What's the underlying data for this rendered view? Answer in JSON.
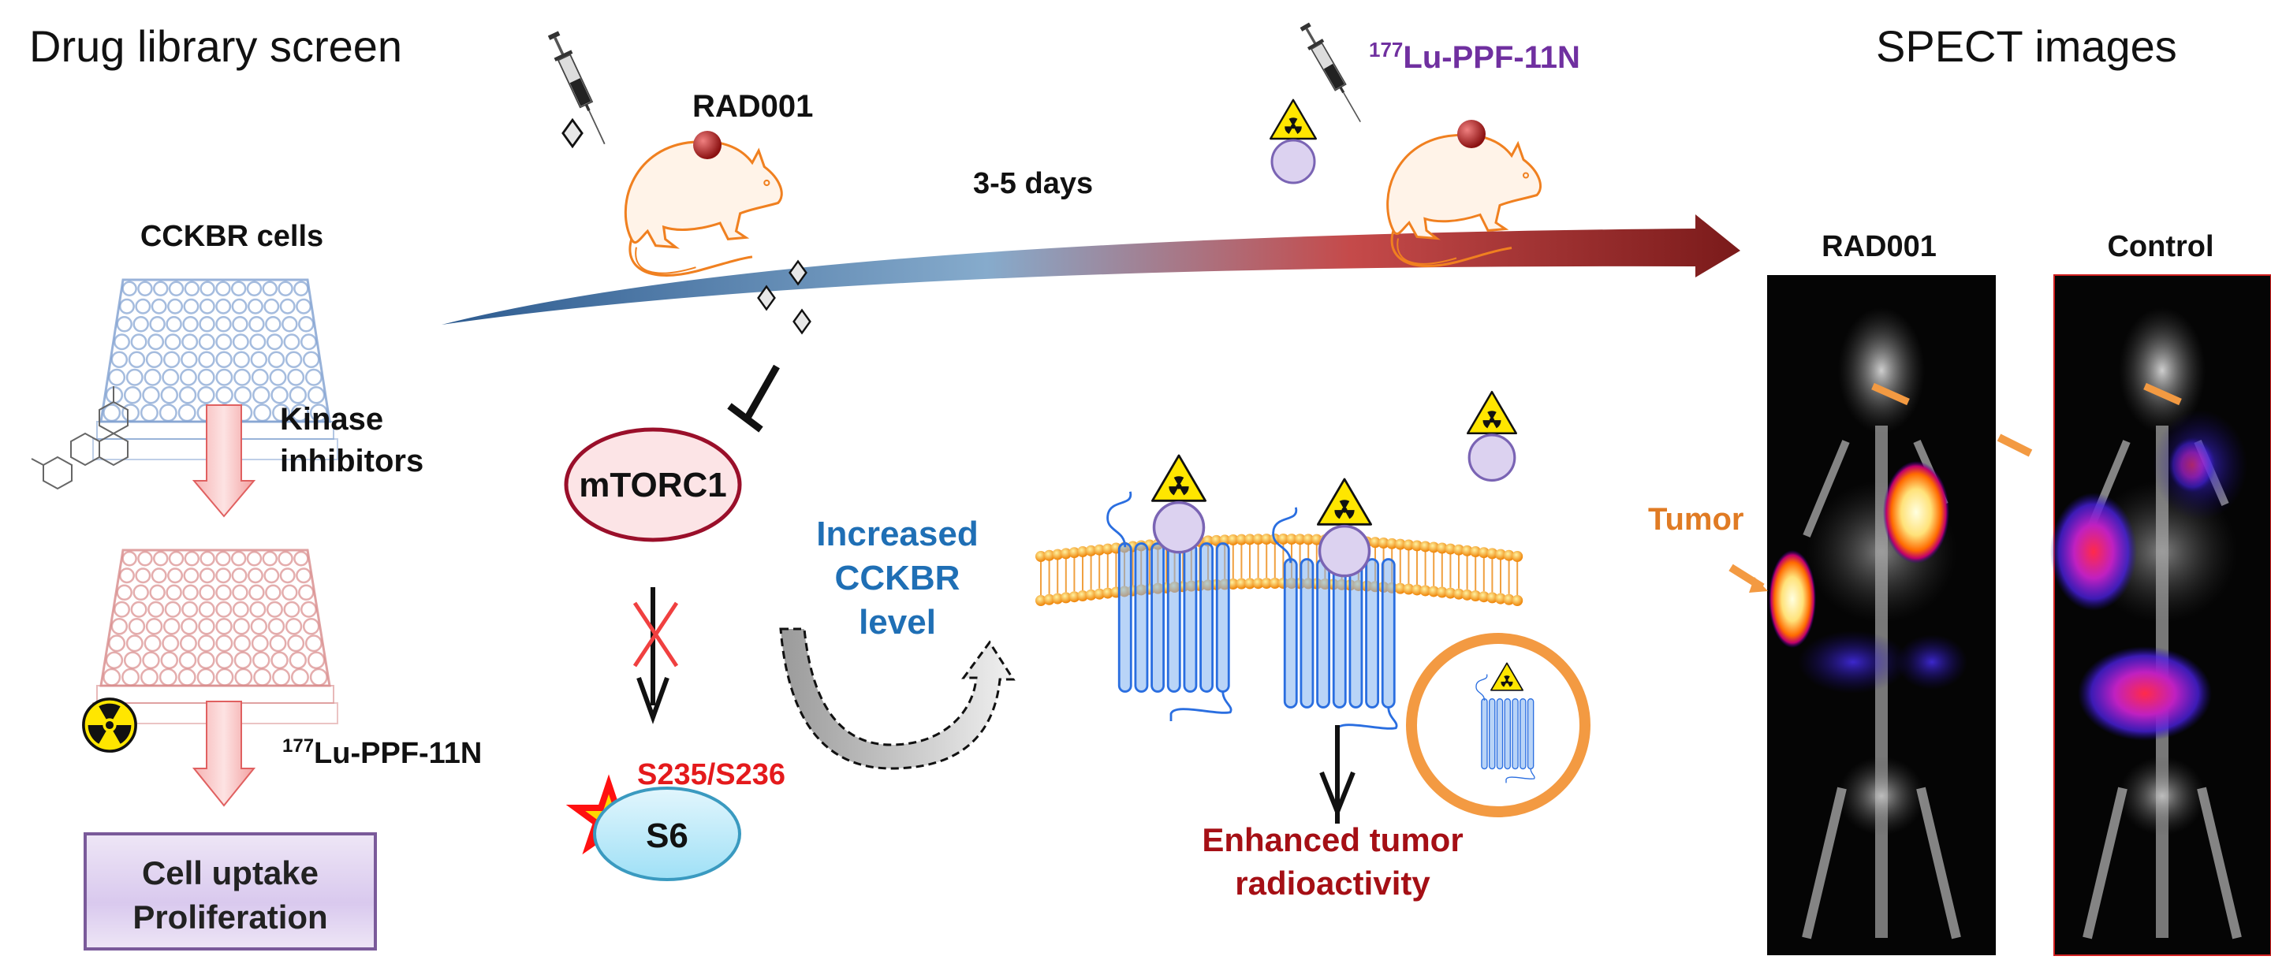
{
  "title_left": "Drug library screen",
  "title_right": "SPECT images",
  "screen": {
    "cells_label": "CCKBR cells",
    "step1_label_line1": "Kinase",
    "step1_label_line2": "inhibitors",
    "step2_isotope": "177",
    "step2_label": "Lu-PPF-11N",
    "readout_line1": "Cell uptake",
    "readout_line2": "Proliferation"
  },
  "in_vivo": {
    "drug_label": "RAD001",
    "interval_label": "3-5 days",
    "tracer_isotope": "177",
    "tracer_label": "Lu-PPF-11N"
  },
  "mechanism": {
    "mtorc1": "mTORC1",
    "phospho_site": "S235/S236",
    "s6": "S6",
    "increase_line1": "Increased",
    "increase_line2": "CCKBR",
    "increase_line3": "level",
    "outcome_line1": "Enhanced tumor",
    "outcome_line2": "radioactivity"
  },
  "spect": {
    "tumor_label": "Tumor",
    "panels": [
      {
        "label": "RAD001"
      },
      {
        "label": "Control"
      }
    ]
  },
  "colors": {
    "tracer_text": "#7030a0",
    "increase_text": "#1f6fb5",
    "outcome_text": "#a50f15",
    "phospho_text": "#e41a1c",
    "tumor_text": "#e07b24",
    "membrane": "#f7a21b",
    "receptor": "#4a8fe0",
    "timeline_start": "#2c5a8f",
    "timeline_end": "#7a1a1a"
  }
}
